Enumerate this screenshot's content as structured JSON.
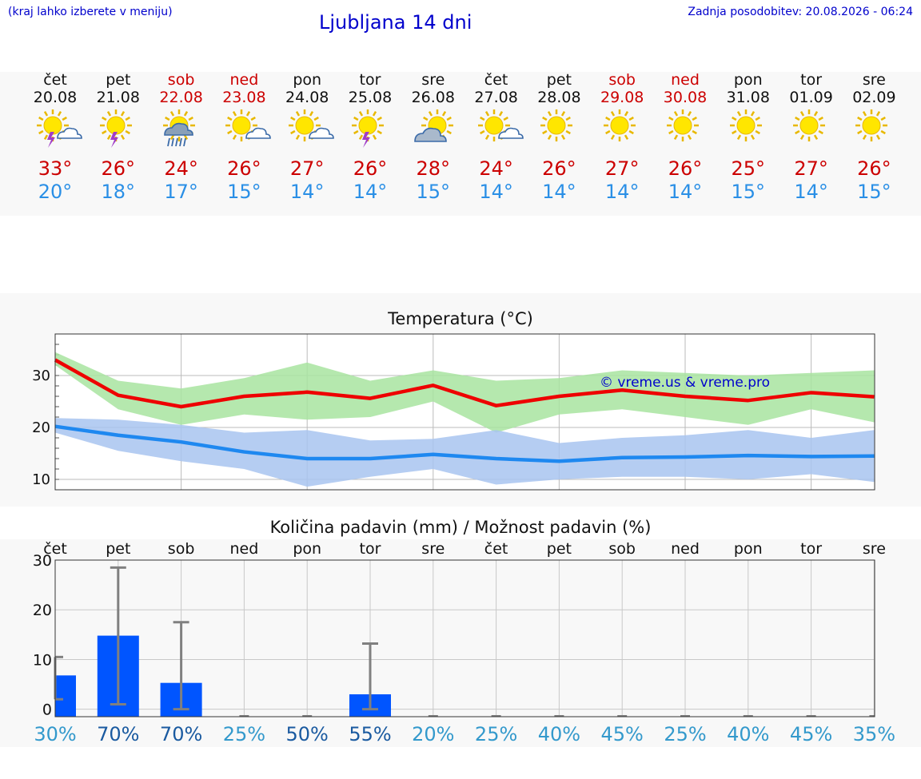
{
  "header": {
    "menu_hint": "(kraj lahko izberete v meniju)",
    "title": "Ljubljana 14 dni",
    "updated": "Zadnja posodobitev: 20.08.2026 - 06:24"
  },
  "days": [
    {
      "name": "čet",
      "date": "20.08",
      "weekend": false,
      "icon": "sun-cloud-thunder-icon",
      "tmax": "33°",
      "tmin": "20°"
    },
    {
      "name": "pet",
      "date": "21.08",
      "weekend": false,
      "icon": "sun-thunder-icon",
      "tmax": "26°",
      "tmin": "18°"
    },
    {
      "name": "sob",
      "date": "22.08",
      "weekend": true,
      "icon": "sun-rain-cloud-icon",
      "tmax": "24°",
      "tmin": "17°"
    },
    {
      "name": "ned",
      "date": "23.08",
      "weekend": true,
      "icon": "sun-cloud-icon",
      "tmax": "26°",
      "tmin": "15°"
    },
    {
      "name": "pon",
      "date": "24.08",
      "weekend": false,
      "icon": "sun-cloud-icon",
      "tmax": "27°",
      "tmin": "14°"
    },
    {
      "name": "tor",
      "date": "25.08",
      "weekend": false,
      "icon": "sun-thunder-icon",
      "tmax": "26°",
      "tmin": "14°"
    },
    {
      "name": "sre",
      "date": "26.08",
      "weekend": false,
      "icon": "cloud-sun-icon",
      "tmax": "28°",
      "tmin": "15°"
    },
    {
      "name": "čet",
      "date": "27.08",
      "weekend": false,
      "icon": "sun-cloud-icon",
      "tmax": "24°",
      "tmin": "14°"
    },
    {
      "name": "pet",
      "date": "28.08",
      "weekend": false,
      "icon": "sun-icon",
      "tmax": "26°",
      "tmin": "14°"
    },
    {
      "name": "sob",
      "date": "29.08",
      "weekend": true,
      "icon": "sun-icon",
      "tmax": "27°",
      "tmin": "14°"
    },
    {
      "name": "ned",
      "date": "30.08",
      "weekend": true,
      "icon": "sun-icon",
      "tmax": "26°",
      "tmin": "14°"
    },
    {
      "name": "pon",
      "date": "31.08",
      "weekend": false,
      "icon": "sun-icon",
      "tmax": "25°",
      "tmin": "15°"
    },
    {
      "name": "tor",
      "date": "01.09",
      "weekend": false,
      "icon": "sun-icon",
      "tmax": "27°",
      "tmin": "14°"
    },
    {
      "name": "sre",
      "date": "02.09",
      "weekend": false,
      "icon": "sun-icon",
      "tmax": "26°",
      "tmin": "15°"
    }
  ],
  "colors": {
    "max_line": "#ee0000",
    "max_band": "#a8e4a0",
    "min_line": "#1e88f0",
    "min_band": "#a8c4f0",
    "bar": "#0055ff",
    "err": "#808080",
    "prob_low": "#3399cc",
    "prob_high": "#1a5aa0",
    "grid": "#cccccc"
  },
  "chart_data": [
    {
      "type": "line",
      "title": "Temperatura (°C)",
      "watermark": "© vreme.us & vreme.pro",
      "x": [
        "20.08",
        "21.08",
        "22.08",
        "23.08",
        "24.08",
        "25.08",
        "26.08",
        "27.08",
        "28.08",
        "29.08",
        "30.08",
        "31.08",
        "01.09",
        "02.09"
      ],
      "ylim": [
        8,
        38
      ],
      "yticks": [
        10,
        20,
        30
      ],
      "grid": true,
      "series": [
        {
          "values": [
            33,
            26.2,
            24,
            26,
            26.8,
            25.6,
            28.1,
            24.2,
            26,
            27.2,
            26,
            25.2,
            26.7,
            25.9
          ],
          "band_low": [
            32,
            23.5,
            20.5,
            22.5,
            21.5,
            22,
            25,
            19,
            22.5,
            23.5,
            22,
            20.5,
            23.5,
            21
          ],
          "band_high": [
            34.5,
            29,
            27.5,
            29.5,
            32.5,
            29,
            31,
            29,
            29.5,
            31,
            30.5,
            30,
            30.5,
            31
          ]
        },
        {
          "values": [
            20.2,
            18.5,
            17.2,
            15.3,
            14,
            14,
            14.8,
            14,
            13.5,
            14.2,
            14.3,
            14.6,
            14.4,
            14.5
          ],
          "band_low": [
            19,
            15.5,
            13.5,
            12,
            8.6,
            10.5,
            12,
            9,
            10,
            10.5,
            10.5,
            10,
            11,
            9.5
          ],
          "band_high": [
            21.8,
            21.5,
            20.5,
            19,
            19.5,
            17.5,
            17.8,
            19.5,
            17,
            18,
            18.5,
            19.5,
            18,
            19.5
          ]
        }
      ]
    },
    {
      "type": "bar",
      "title": "Količina padavin (mm) / Možnost padavin (%)",
      "categories": [
        "čet",
        "pet",
        "sob",
        "ned",
        "pon",
        "tor",
        "sre",
        "čet",
        "pet",
        "sob",
        "ned",
        "pon",
        "tor",
        "sre"
      ],
      "values": [
        6.8,
        14.8,
        5.3,
        0,
        0,
        3,
        0,
        0,
        0,
        0,
        0,
        0,
        0,
        0
      ],
      "err_low": [
        2,
        1,
        0,
        0,
        0,
        0,
        0,
        0,
        0,
        0,
        0,
        0,
        0,
        0
      ],
      "err_high": [
        10.5,
        28.5,
        17.5,
        0,
        0,
        13.2,
        0,
        0,
        0,
        0,
        0,
        0,
        0,
        0
      ],
      "probability": [
        "30%",
        "70%",
        "70%",
        "25%",
        "50%",
        "55%",
        "20%",
        "25%",
        "40%",
        "45%",
        "25%",
        "40%",
        "45%",
        "35%"
      ],
      "probability_values": [
        30,
        70,
        70,
        25,
        50,
        55,
        20,
        25,
        40,
        45,
        25,
        40,
        45,
        35
      ],
      "ylim": [
        -1.5,
        30
      ],
      "yticks": [
        0,
        10,
        20,
        30
      ],
      "grid": true
    }
  ]
}
